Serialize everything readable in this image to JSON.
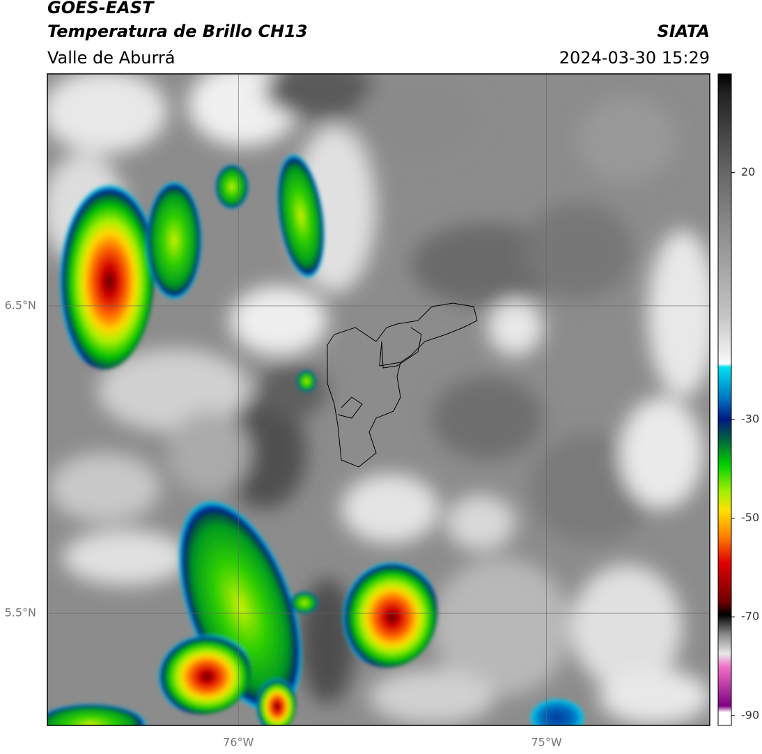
{
  "header": {
    "title": "GOES-EAST",
    "subtitle": "Temperatura de Brillo CH13",
    "region": "Valle de Aburrá",
    "source": "SIATA",
    "datetime": "2024-03-30 15:29"
  },
  "map": {
    "lonlim": [
      -76.62,
      -74.47
    ],
    "latlim": [
      5.135,
      7.255
    ],
    "lon_ticks": [
      {
        "value": -76,
        "label": "76°W"
      },
      {
        "value": -75,
        "label": "75°W"
      }
    ],
    "lat_ticks": [
      {
        "value": 6.5,
        "label": "6.5°N"
      },
      {
        "value": 5.5,
        "label": "5.5°N"
      }
    ],
    "grid": true
  },
  "colorbar": {
    "lim": [
      -92,
      40
    ],
    "ticks": [
      20,
      -30,
      -50,
      -70,
      -90
    ]
  }
}
